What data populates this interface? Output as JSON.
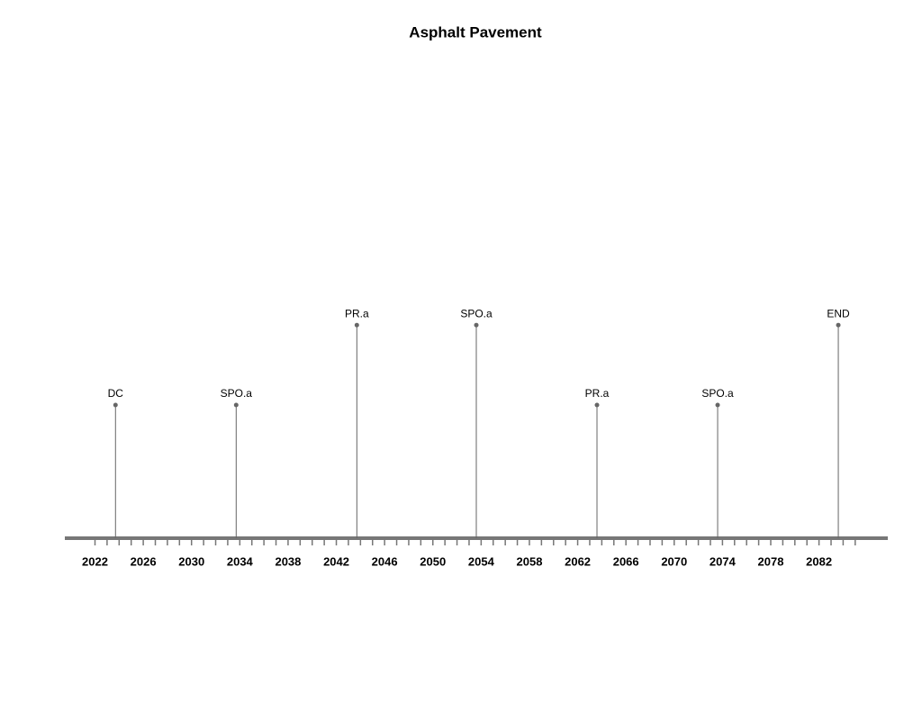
{
  "chart_data": {
    "type": "timeline",
    "title": "Asphalt Pavement",
    "x": [
      2023.7,
      2033.7,
      2043.7,
      2053.6,
      2063.6,
      2073.6,
      2083.6
    ],
    "labels": [
      "DC",
      "SPO.a",
      "PR.a",
      "SPO.a",
      "PR.a",
      "SPO.a",
      "END"
    ],
    "values": [
      0.5,
      0.5,
      0.8,
      0.8,
      0.5,
      0.5,
      0.8
    ],
    "color": "#666666",
    "axis_color": "#777777",
    "xlim": [
      2019.5,
      2087.7
    ],
    "xticks": [
      2022,
      2026,
      2030,
      2034,
      2038,
      2042,
      2046,
      2050,
      2054,
      2058,
      2062,
      2066,
      2070,
      2074,
      2078,
      2082
    ],
    "xminorticks": [
      2022,
      2023,
      2024,
      2025,
      2026,
      2027,
      2028,
      2029,
      2030,
      2031,
      2032,
      2033,
      2034,
      2035,
      2036,
      2037,
      2038,
      2039,
      2040,
      2041,
      2042,
      2043,
      2044,
      2045,
      2046,
      2047,
      2048,
      2049,
      2050,
      2051,
      2052,
      2053,
      2054,
      2055,
      2056,
      2057,
      2058,
      2059,
      2060,
      2061,
      2062,
      2063,
      2064,
      2065,
      2066,
      2067,
      2068,
      2069,
      2070,
      2071,
      2072,
      2073,
      2074,
      2075,
      2076,
      2077,
      2078,
      2079,
      2080,
      2081,
      2082,
      2083,
      2084,
      2085
    ]
  }
}
